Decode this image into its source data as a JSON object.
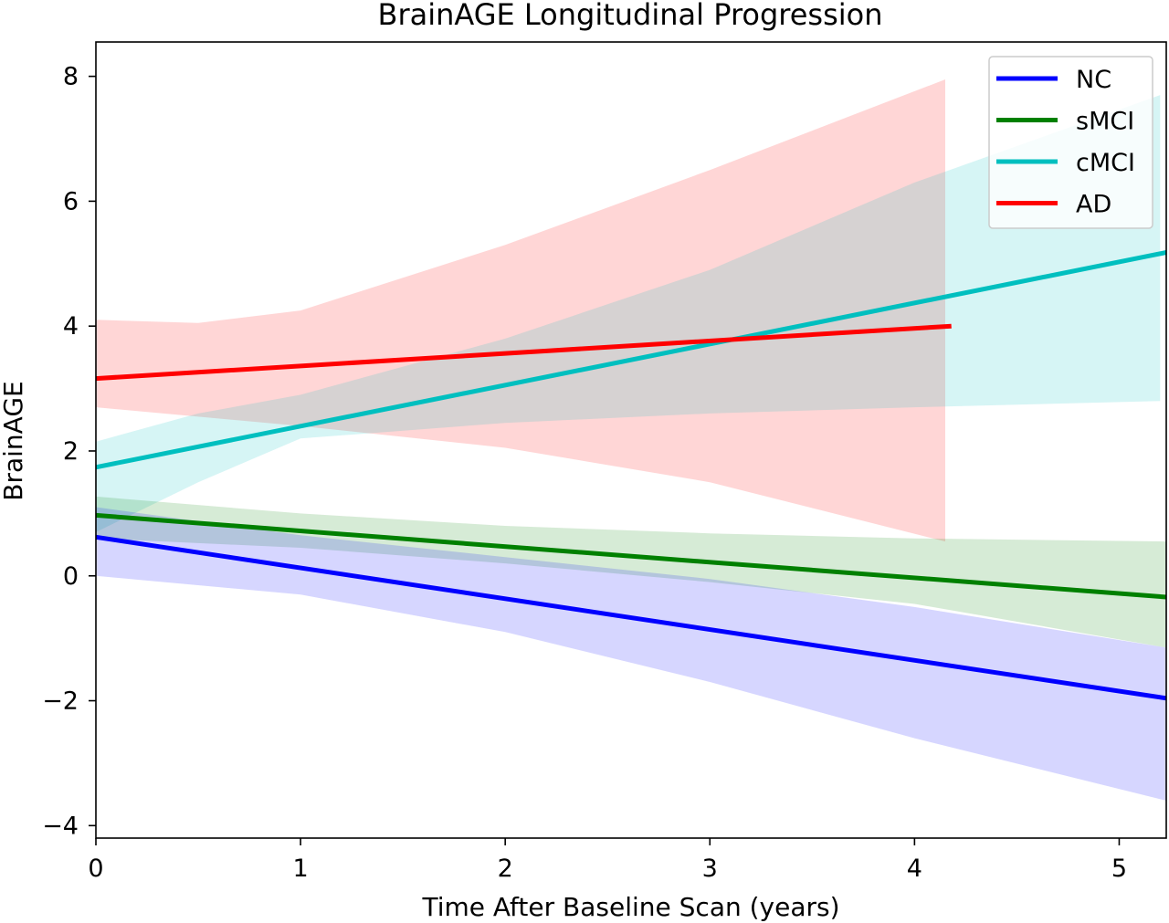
{
  "chart_data": {
    "type": "line",
    "title": "BrainAGE Longitudinal Progression",
    "xlabel": "Time After Baseline Scan (years)",
    "ylabel": "BrainAGE",
    "xlim": [
      0,
      5.23
    ],
    "ylim": [
      -4.2,
      8.55
    ],
    "xticks": [
      0,
      1,
      2,
      3,
      4,
      5
    ],
    "xtick_labels": [
      "0",
      "1",
      "2",
      "3",
      "4",
      "5"
    ],
    "yticks": [
      -4,
      -2,
      0,
      2,
      4,
      6,
      8
    ],
    "ytick_labels": [
      "−4",
      "−2",
      "0",
      "2",
      "4",
      "6",
      "8"
    ],
    "grid": false,
    "legend_position": "upper-right",
    "series": [
      {
        "name": "NC",
        "color": "#0000ff",
        "x": [
          0,
          5.23
        ],
        "y": [
          0.62,
          -1.96
        ],
        "band": {
          "x": [
            0,
            1,
            2,
            3,
            4,
            5.23
          ],
          "lower": [
            0.0,
            -0.3,
            -0.9,
            -1.7,
            -2.6,
            -3.6
          ],
          "upper": [
            1.1,
            0.65,
            0.3,
            -0.05,
            -0.5,
            -1.15
          ]
        }
      },
      {
        "name": "sMCI",
        "color": "#008000",
        "x": [
          0,
          5.23
        ],
        "y": [
          0.97,
          -0.34
        ],
        "band": {
          "x": [
            0,
            1,
            2,
            3,
            4,
            5.23
          ],
          "lower": [
            0.6,
            0.45,
            0.2,
            -0.1,
            -0.45,
            -1.15
          ],
          "upper": [
            1.27,
            1.0,
            0.8,
            0.68,
            0.6,
            0.55
          ]
        }
      },
      {
        "name": "cMCI",
        "color": "#00bfbf",
        "x": [
          0,
          5.23
        ],
        "y": [
          1.74,
          5.18
        ],
        "band": {
          "x": [
            0,
            0.5,
            1,
            2,
            3,
            4,
            5.2
          ],
          "lower": [
            0.7,
            1.5,
            2.2,
            2.45,
            2.6,
            2.7,
            2.8
          ],
          "upper": [
            2.15,
            2.6,
            2.9,
            3.8,
            4.9,
            6.3,
            7.7
          ]
        }
      },
      {
        "name": "AD",
        "color": "#ff0000",
        "x": [
          0,
          4.18
        ],
        "y": [
          3.16,
          4.0
        ],
        "band": {
          "x": [
            0,
            0.5,
            1,
            2,
            3,
            4.15
          ],
          "lower": [
            2.7,
            2.55,
            2.4,
            2.05,
            1.5,
            0.55
          ],
          "upper": [
            4.1,
            4.05,
            4.25,
            5.3,
            6.5,
            7.95
          ]
        }
      }
    ]
  }
}
